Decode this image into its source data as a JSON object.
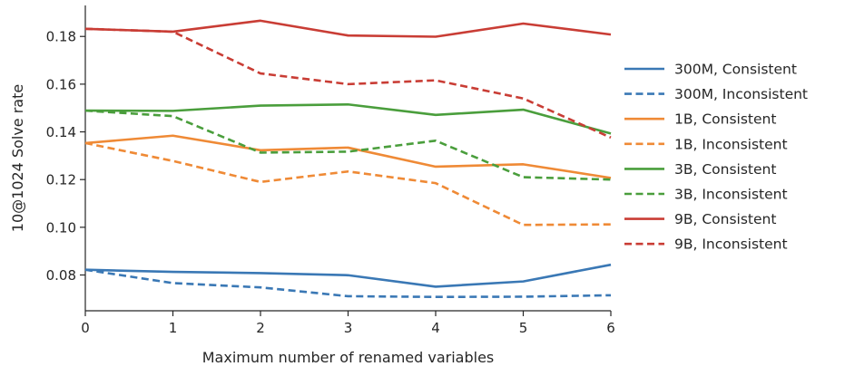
{
  "chart_data": {
    "type": "line",
    "title": "",
    "xlabel": "Maximum number of renamed variables",
    "ylabel": "10@1024 Solve rate",
    "x": [
      0,
      1,
      2,
      3,
      4,
      5,
      6
    ],
    "xlim": [
      0,
      6
    ],
    "ylim": [
      0.065,
      0.193
    ],
    "xticks": [
      0,
      1,
      2,
      3,
      4,
      5,
      6
    ],
    "yticks": [
      0.08,
      0.1,
      0.12,
      0.14,
      0.16,
      0.18
    ],
    "ytick_labels": [
      "0.08",
      "0.10",
      "0.12",
      "0.14",
      "0.16",
      "0.18"
    ],
    "grid": false,
    "legend_position": "right",
    "series": [
      {
        "name": "300M, Consistent",
        "color": "#3a78b5",
        "dash": "solid",
        "values": [
          0.0822,
          0.0813,
          0.0808,
          0.0799,
          0.0751,
          0.0773,
          0.0843
        ]
      },
      {
        "name": "300M, Inconsistent",
        "color": "#3a78b5",
        "dash": "dashed",
        "values": [
          0.0822,
          0.0766,
          0.0748,
          0.0711,
          0.0708,
          0.0709,
          0.0715
        ]
      },
      {
        "name": "1B, Consistent",
        "color": "#ef8a36",
        "dash": "solid",
        "values": [
          0.1353,
          0.1384,
          0.1323,
          0.1334,
          0.1254,
          0.1264,
          0.1207
        ]
      },
      {
        "name": "1B, Inconsistent",
        "color": "#ef8a36",
        "dash": "dashed",
        "values": [
          0.1353,
          0.1278,
          0.119,
          0.1234,
          0.1185,
          0.101,
          0.1012
        ]
      },
      {
        "name": "3B, Consistent",
        "color": "#4a9e3c",
        "dash": "solid",
        "values": [
          0.1489,
          0.1488,
          0.151,
          0.1515,
          0.1471,
          0.1493,
          0.1393
        ]
      },
      {
        "name": "3B, Inconsistent",
        "color": "#4a9e3c",
        "dash": "dashed",
        "values": [
          0.1489,
          0.1466,
          0.1313,
          0.1317,
          0.1363,
          0.121,
          0.12
        ]
      },
      {
        "name": "9B, Consistent",
        "color": "#c93d35",
        "dash": "solid",
        "values": [
          0.1832,
          0.182,
          0.1866,
          0.1804,
          0.1799,
          0.1854,
          0.1808
        ]
      },
      {
        "name": "9B, Inconsistent",
        "color": "#c93d35",
        "dash": "dashed",
        "values": [
          0.1832,
          0.182,
          0.1645,
          0.16,
          0.1616,
          0.154,
          0.1376
        ]
      }
    ]
  }
}
